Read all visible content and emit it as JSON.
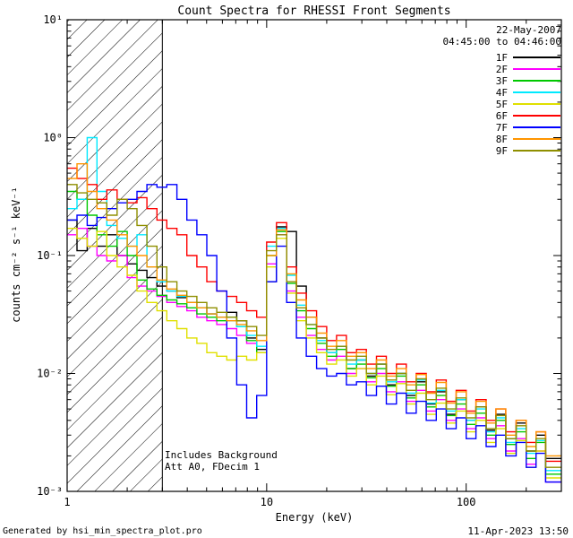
{
  "title": "Count Spectra for RHESSI Front Segments",
  "header": {
    "date": "22-May-2007",
    "time_range": "04:45:00 to 04:46:00"
  },
  "annotations": {
    "background": "Includes Background",
    "attenuator": "Att A0, FDecim 1"
  },
  "footer": {
    "left": "Generated by hsi_min_spectra_plot.pro",
    "right": "11-Apr-2023 13:50"
  },
  "chart_data": {
    "type": "line",
    "style": "step-histogram",
    "title": "Count Spectra for RHESSI Front Segments",
    "xlabel": "Energy (keV)",
    "ylabel": "counts cm⁻² s⁻¹ keV⁻¹",
    "x_scale": "log",
    "y_scale": "log",
    "xlim": [
      1,
      300
    ],
    "ylim": [
      0.001,
      10
    ],
    "grid": false,
    "legend_position": "top-right",
    "x_ticks": [
      {
        "value": 1,
        "label": "1"
      },
      {
        "value": 10,
        "label": "10"
      },
      {
        "value": 100,
        "label": "100"
      }
    ],
    "y_ticks": [
      {
        "value": 10,
        "label": "10¹"
      },
      {
        "value": 1,
        "label": "10⁰"
      },
      {
        "value": 0.1,
        "label": "10⁻¹"
      },
      {
        "value": 0.01,
        "label": "10⁻²"
      },
      {
        "value": 0.001,
        "label": "10⁻³"
      }
    ],
    "hatch_region": {
      "xmin": 1,
      "xmax": 3
    },
    "energies": [
      1.0,
      1.12,
      1.26,
      1.41,
      1.58,
      1.78,
      2.0,
      2.24,
      2.51,
      2.82,
      3.16,
      3.55,
      3.98,
      4.47,
      5.01,
      5.62,
      6.31,
      7.08,
      7.94,
      8.91,
      10.0,
      11.2,
      12.6,
      14.1,
      15.8,
      17.8,
      20.0,
      22.4,
      25.1,
      28.2,
      31.6,
      35.5,
      39.8,
      44.7,
      50.1,
      56.2,
      63.1,
      70.8,
      79.4,
      89.1,
      100,
      112,
      126,
      141,
      158,
      178,
      200,
      224,
      250
    ],
    "series": [
      {
        "name": "1F",
        "color": "#000000",
        "values": [
          0.2,
          0.11,
          0.17,
          0.12,
          0.15,
          0.1,
          0.085,
          0.075,
          0.065,
          0.055,
          0.05,
          0.044,
          0.04,
          0.036,
          0.032,
          0.03,
          0.033,
          0.028,
          0.02,
          0.016,
          0.06,
          0.175,
          0.16,
          0.055,
          0.03,
          0.02,
          0.015,
          0.017,
          0.011,
          0.013,
          0.0095,
          0.012,
          0.008,
          0.01,
          0.0065,
          0.0085,
          0.0055,
          0.007,
          0.0045,
          0.006,
          0.004,
          0.0052,
          0.0033,
          0.0045,
          0.0028,
          0.0038,
          0.0022,
          0.003,
          0.0019
        ]
      },
      {
        "name": "2F",
        "color": "#ff00ff",
        "values": [
          0.15,
          0.17,
          0.12,
          0.1,
          0.09,
          0.1,
          0.065,
          0.055,
          0.05,
          0.045,
          0.04,
          0.037,
          0.034,
          0.03,
          0.028,
          0.026,
          0.024,
          0.021,
          0.018,
          0.015,
          0.085,
          0.15,
          0.05,
          0.03,
          0.021,
          0.016,
          0.013,
          0.014,
          0.01,
          0.011,
          0.0085,
          0.01,
          0.007,
          0.0085,
          0.0058,
          0.0072,
          0.0048,
          0.006,
          0.004,
          0.005,
          0.0034,
          0.0042,
          0.0028,
          0.0036,
          0.0022,
          0.0028,
          0.0017,
          0.0022,
          0.0012
        ]
      },
      {
        "name": "3F",
        "color": "#00c800",
        "values": [
          0.35,
          0.3,
          0.22,
          0.15,
          0.12,
          0.16,
          0.1,
          0.062,
          0.052,
          0.046,
          0.042,
          0.039,
          0.036,
          0.032,
          0.03,
          0.028,
          0.03,
          0.025,
          0.019,
          0.015,
          0.1,
          0.16,
          0.058,
          0.034,
          0.024,
          0.018,
          0.014,
          0.016,
          0.011,
          0.012,
          0.0092,
          0.011,
          0.0078,
          0.0095,
          0.0062,
          0.008,
          0.0052,
          0.0065,
          0.0044,
          0.0055,
          0.0037,
          0.0046,
          0.003,
          0.004,
          0.0025,
          0.0032,
          0.0019,
          0.0026,
          0.0014
        ]
      },
      {
        "name": "4F",
        "color": "#00eaff",
        "values": [
          0.25,
          0.3,
          1.0,
          0.35,
          0.18,
          0.14,
          0.12,
          0.15,
          0.08,
          0.06,
          0.05,
          0.045,
          0.04,
          0.036,
          0.032,
          0.03,
          0.028,
          0.025,
          0.021,
          0.017,
          0.12,
          0.17,
          0.068,
          0.038,
          0.026,
          0.019,
          0.015,
          0.017,
          0.012,
          0.013,
          0.01,
          0.012,
          0.0085,
          0.01,
          0.0068,
          0.0088,
          0.0056,
          0.0072,
          0.0048,
          0.006,
          0.004,
          0.005,
          0.0032,
          0.0042,
          0.0026,
          0.0034,
          0.0021,
          0.0027,
          0.0015
        ]
      },
      {
        "name": "5F",
        "color": "#e0e000",
        "values": [
          0.17,
          0.14,
          0.12,
          0.16,
          0.1,
          0.08,
          0.068,
          0.05,
          0.04,
          0.034,
          0.028,
          0.024,
          0.02,
          0.018,
          0.015,
          0.014,
          0.013,
          0.014,
          0.013,
          0.015,
          0.08,
          0.14,
          0.048,
          0.028,
          0.02,
          0.015,
          0.012,
          0.013,
          0.0095,
          0.011,
          0.008,
          0.0095,
          0.0066,
          0.0082,
          0.0055,
          0.0068,
          0.0045,
          0.0056,
          0.0038,
          0.0048,
          0.0032,
          0.004,
          0.0026,
          0.0034,
          0.0021,
          0.0027,
          0.0016,
          0.0022,
          0.0013
        ]
      },
      {
        "name": "6F",
        "color": "#ff0000",
        "values": [
          0.55,
          0.45,
          0.4,
          0.3,
          0.36,
          0.3,
          0.28,
          0.31,
          0.25,
          0.2,
          0.17,
          0.15,
          0.1,
          0.08,
          0.06,
          0.05,
          0.045,
          0.04,
          0.034,
          0.03,
          0.13,
          0.19,
          0.08,
          0.048,
          0.034,
          0.025,
          0.019,
          0.021,
          0.015,
          0.016,
          0.012,
          0.014,
          0.01,
          0.012,
          0.0085,
          0.01,
          0.007,
          0.0088,
          0.0058,
          0.0072,
          0.0048,
          0.006,
          0.004,
          0.005,
          0.0032,
          0.004,
          0.0026,
          0.0032,
          0.0018
        ]
      },
      {
        "name": "7F",
        "color": "#0000ff",
        "values": [
          0.2,
          0.22,
          0.18,
          0.21,
          0.25,
          0.28,
          0.3,
          0.35,
          0.4,
          0.38,
          0.4,
          0.3,
          0.2,
          0.15,
          0.1,
          0.05,
          0.02,
          0.008,
          0.0042,
          0.0065,
          0.06,
          0.12,
          0.04,
          0.02,
          0.014,
          0.011,
          0.0095,
          0.01,
          0.008,
          0.0085,
          0.0065,
          0.0078,
          0.0055,
          0.0068,
          0.0046,
          0.0058,
          0.004,
          0.005,
          0.0034,
          0.0042,
          0.0028,
          0.0036,
          0.0024,
          0.003,
          0.002,
          0.0026,
          0.0016,
          0.0021,
          0.0012
        ]
      },
      {
        "name": "8F",
        "color": "#ff9500",
        "values": [
          0.45,
          0.6,
          0.35,
          0.25,
          0.2,
          0.15,
          0.12,
          0.1,
          0.08,
          0.062,
          0.052,
          0.046,
          0.04,
          0.036,
          0.032,
          0.03,
          0.028,
          0.026,
          0.023,
          0.019,
          0.1,
          0.165,
          0.07,
          0.042,
          0.03,
          0.022,
          0.017,
          0.019,
          0.014,
          0.015,
          0.011,
          0.013,
          0.0095,
          0.011,
          0.008,
          0.0098,
          0.0068,
          0.0084,
          0.0056,
          0.007,
          0.0046,
          0.0058,
          0.0038,
          0.005,
          0.003,
          0.004,
          0.0024,
          0.0032,
          0.002
        ]
      },
      {
        "name": "9F",
        "color": "#8f8f00",
        "values": [
          0.4,
          0.34,
          0.3,
          0.28,
          0.22,
          0.3,
          0.25,
          0.18,
          0.12,
          0.08,
          0.06,
          0.05,
          0.045,
          0.04,
          0.036,
          0.033,
          0.03,
          0.028,
          0.025,
          0.021,
          0.11,
          0.15,
          0.06,
          0.036,
          0.026,
          0.02,
          0.016,
          0.017,
          0.013,
          0.014,
          0.01,
          0.012,
          0.0088,
          0.01,
          0.0072,
          0.009,
          0.006,
          0.0075,
          0.005,
          0.0062,
          0.0042,
          0.0052,
          0.0034,
          0.0044,
          0.0028,
          0.0036,
          0.0022,
          0.0028,
          0.0016
        ]
      }
    ]
  }
}
